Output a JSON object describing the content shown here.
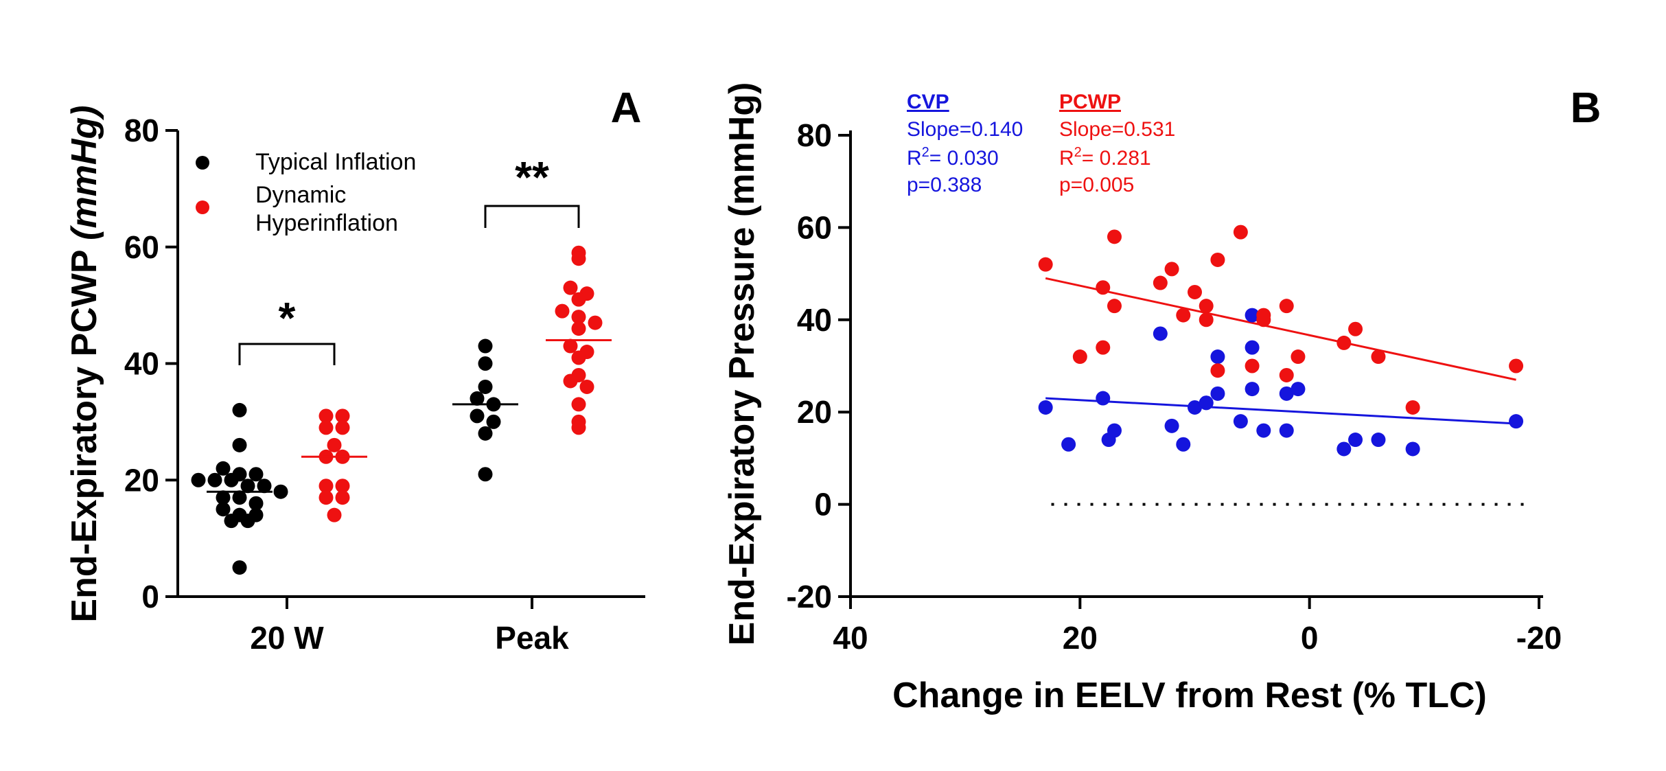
{
  "chart_data": [
    {
      "panel": "A",
      "type": "scatter",
      "ylabel_main": "End-Expiratory PCWP ",
      "ylabel_unit": "(mmHg)",
      "ylim": [
        0,
        80
      ],
      "yticks": [
        0,
        20,
        40,
        60,
        80
      ],
      "categories": [
        "20 W",
        "Peak"
      ],
      "legend": [
        {
          "name": "Typical Inflation",
          "color": "#000000"
        },
        {
          "name_line1": "Dynamic",
          "name_line2": "Hyperinflation",
          "color": "#ee1111"
        }
      ],
      "series": [
        {
          "name": "Typical Inflation",
          "color": "#000000",
          "category": "20 W",
          "mean": 18,
          "values": [
            32,
            26,
            22,
            21,
            21,
            20,
            20,
            20,
            19,
            19,
            18,
            17,
            17,
            16,
            15,
            14,
            14,
            13,
            13,
            5
          ]
        },
        {
          "name": "Dynamic Hyperinflation",
          "color": "#ee1111",
          "category": "20 W",
          "mean": 24,
          "values": [
            31,
            31,
            29,
            29,
            26,
            24,
            24,
            19,
            19,
            17,
            17,
            14
          ]
        },
        {
          "name": "Typical Inflation",
          "color": "#000000",
          "category": "Peak",
          "mean": 33,
          "values": [
            43,
            40,
            36,
            34,
            33,
            31,
            30,
            28,
            21
          ]
        },
        {
          "name": "Dynamic Hyperinflation",
          "color": "#ee1111",
          "category": "Peak",
          "mean": 44,
          "values": [
            59,
            58,
            53,
            52,
            51,
            49,
            48,
            47,
            46,
            43,
            42,
            41,
            38,
            37,
            36,
            33,
            30,
            29
          ]
        }
      ],
      "significance": [
        {
          "category": "20 W",
          "label": "*"
        },
        {
          "category": "Peak",
          "label": "**"
        }
      ]
    },
    {
      "panel": "B",
      "type": "scatter",
      "xlabel": "Change in EELV from Rest (%  TLC)",
      "ylabel": "End-Expiratory Pressure (mmHg)",
      "xlim": [
        40,
        -20
      ],
      "ylim": [
        -20,
        80
      ],
      "xticks": [
        40,
        20,
        0,
        -20
      ],
      "yticks": [
        -20,
        0,
        20,
        40,
        60,
        80
      ],
      "reference_line_y": 0,
      "series": [
        {
          "name": "CVP",
          "color": "#1515dd",
          "slope_text": "Slope=0.140",
          "r2_prefix": "R",
          "r2_sup": "2",
          "r2_value": "= 0.030",
          "p_text": "p=0.388",
          "fit": {
            "x0": 23,
            "y0": 23,
            "x1": -18,
            "y1": 17.5
          },
          "x": [
            23,
            21,
            18,
            17.5,
            17,
            13,
            12,
            11,
            10,
            9,
            9,
            8,
            8,
            6,
            5,
            5,
            5,
            4,
            2,
            2,
            1,
            -3,
            -4,
            -6,
            -9,
            -18
          ],
          "y": [
            21,
            13,
            23,
            14,
            16,
            37,
            17,
            13,
            21,
            22,
            22,
            32,
            24,
            18,
            41,
            34,
            25,
            16,
            16,
            24,
            25,
            12,
            14,
            14,
            12,
            18
          ]
        },
        {
          "name": "PCWP",
          "color": "#ee1111",
          "slope_text": "Slope=0.531",
          "r2_prefix": "R",
          "r2_sup": "2",
          "r2_value": "= 0.281",
          "p_text": "p=0.005",
          "fit": {
            "x0": 23,
            "y0": 49,
            "x1": -18,
            "y1": 27
          },
          "x": [
            23,
            20,
            18,
            18,
            17,
            17,
            13,
            12,
            11,
            10,
            9,
            9,
            8,
            8,
            6,
            5,
            4,
            4,
            2,
            2,
            1,
            -3,
            -4,
            -6,
            -9,
            -18
          ],
          "y": [
            52,
            32,
            47,
            34,
            43,
            58,
            48,
            51,
            41,
            46,
            43,
            40,
            53,
            29,
            59,
            30,
            40,
            41,
            43,
            28,
            32,
            35,
            38,
            32,
            21,
            30
          ]
        }
      ]
    }
  ]
}
